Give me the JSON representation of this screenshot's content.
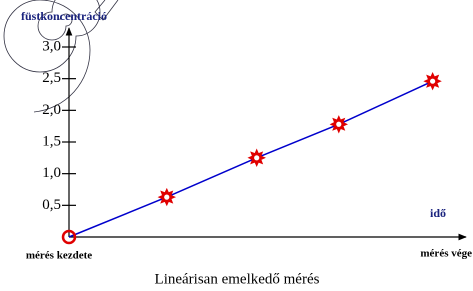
{
  "chart_data": {
    "type": "line",
    "title": "Lineárisan emelkedő mérés",
    "y_label": "füstkoncentráció",
    "x_label": "idő",
    "x": [
      0,
      0.25,
      0.48,
      0.69,
      0.93
    ],
    "xlim": [
      0,
      1
    ],
    "xticks": [
      {
        "value": 0,
        "label": "mérés kezdete"
      },
      {
        "value": 1,
        "label": "mérés vége"
      }
    ],
    "ylim": [
      0,
      3.3
    ],
    "yticks": [
      {
        "value": 0.5,
        "label": "0,5"
      },
      {
        "value": 1,
        "label": "1,0"
      },
      {
        "value": 1.5,
        "label": "1,5"
      },
      {
        "value": 2,
        "label": "2,0"
      },
      {
        "value": 2.5,
        "label": "2,5"
      },
      {
        "value": 3,
        "label": "3,0"
      }
    ],
    "series": [
      {
        "color": "#0000cc",
        "marker_color": "#e00000",
        "values": [
          0,
          0.63,
          1.25,
          1.78,
          2.46
        ]
      }
    ]
  }
}
